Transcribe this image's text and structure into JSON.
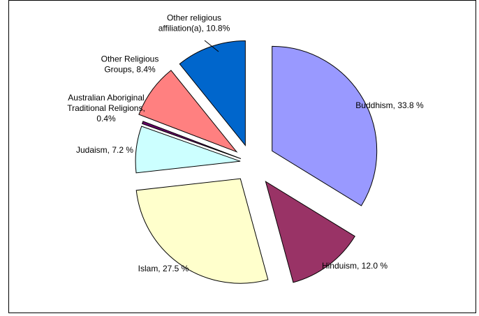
{
  "chart_data": {
    "type": "pie",
    "title": "",
    "legend": "none",
    "exploded": true,
    "slices": [
      {
        "label": "Buddhism, 33.8 %",
        "value": 33.8,
        "color": "#9999ff"
      },
      {
        "label": "Hinduism, 12.0 %",
        "value": 12.0,
        "color": "#993366"
      },
      {
        "label": "Islam, 27.5 %",
        "value": 27.5,
        "color": "#ffffcc"
      },
      {
        "label": "Judaism, 7.2 %",
        "value": 7.2,
        "color": "#ccffff"
      },
      {
        "label": "Australian Aboriginal\nTraditional Religions,\n0.4%",
        "value": 0.4,
        "color": "#660066"
      },
      {
        "label": "Other Religious\nGroups, 8.4%",
        "value": 8.4,
        "color": "#ff8080"
      },
      {
        "label": "Other religious\naffiliation(a), 10.8%",
        "value": 10.8,
        "color": "#0066cc"
      }
    ]
  }
}
